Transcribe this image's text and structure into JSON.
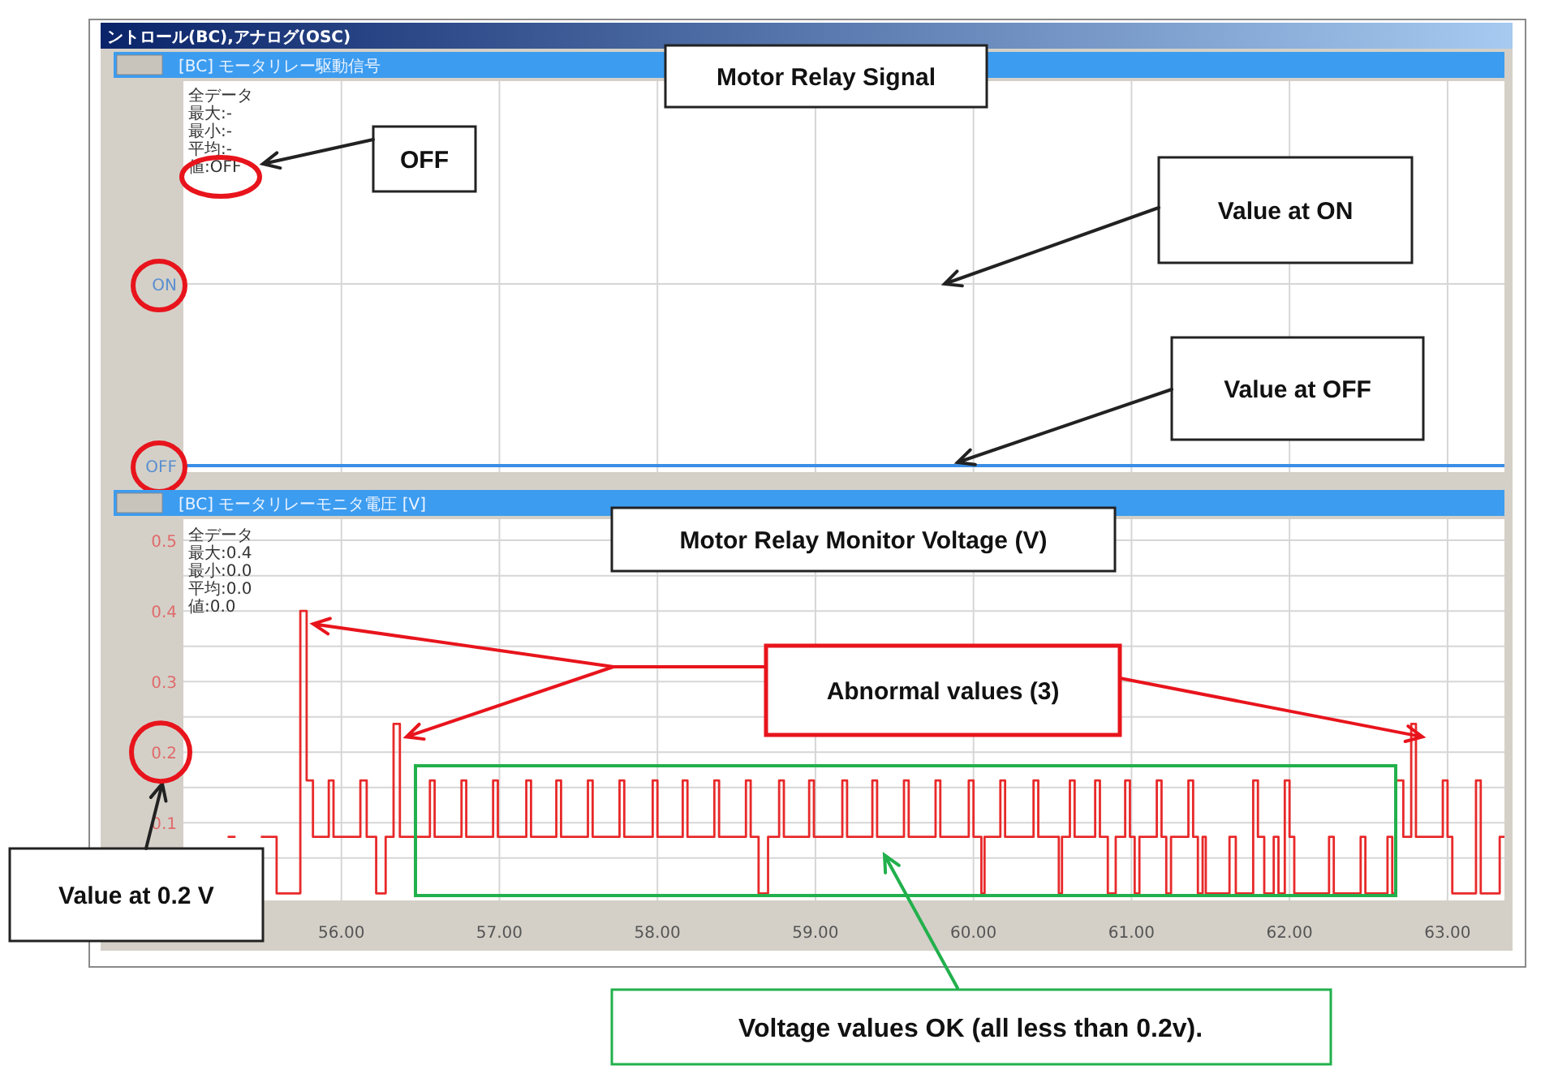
{
  "chart_data": [
    {
      "type": "other",
      "title": "Motor Relay Signal",
      "subtitle": "[BC] モータリレー駆動信号",
      "annotations": [
        "ントロール(BC),アナログ(OSC)",
        "全データ",
        "最大:-",
        "最小:-",
        "平均:-",
        "値:OFF",
        "OFF",
        "Value at ON",
        "Value at OFF",
        "ON",
        "OFF"
      ]
    },
    {
      "type": "step",
      "title": "Motor Relay Monitor Voltage (V)",
      "subtitle": "[BC] モータリレーモニタ電圧 [V]",
      "annotations": [
        "全データ",
        "最大:0.4",
        "最小:0.0",
        "平均:0.0",
        "値:0.0",
        "Abnormal values (3)",
        "Value at 0.2 V",
        "Voltage values OK (all less than 0.2v)."
      ],
      "series": [
        {
          "color": "#e8292a",
          "x": [
            55.28,
            55.33,
            55.49,
            55.59,
            55.74,
            55.78,
            55.82,
            55.92,
            55.95,
            56.12,
            56.16,
            56.22,
            56.28,
            56.33,
            56.37,
            56.56,
            56.59,
            56.76,
            56.79,
            56.96,
            56.99,
            57.17,
            57.2,
            57.36,
            57.39,
            57.56,
            57.59,
            57.76,
            57.79,
            57.97,
            58.0,
            58.16,
            58.19,
            58.36,
            58.39,
            58.56,
            58.59,
            58.64,
            58.7,
            58.77,
            58.8,
            58.96,
            58.99,
            59.17,
            59.2,
            59.36,
            59.39,
            59.56,
            59.59,
            59.76,
            59.79,
            59.97,
            60.0,
            60.05,
            60.07,
            60.17,
            60.2,
            60.38,
            60.41,
            60.54,
            60.56,
            60.61,
            60.64,
            60.77,
            60.8,
            60.85,
            60.9,
            60.96,
            60.99,
            61.02,
            61.05,
            61.16,
            61.19,
            61.22,
            61.25,
            61.36,
            61.39,
            61.42,
            61.45,
            61.47,
            61.62,
            61.66,
            61.77,
            61.8,
            61.84,
            61.9,
            61.93,
            61.97,
            62.0,
            62.03,
            62.25,
            62.28,
            62.45,
            62.48,
            62.62,
            62.65,
            62.67,
            62.72,
            62.77,
            62.8,
            62.97,
            63.0,
            63.03,
            63.18,
            63.21,
            63.33,
            63.36
          ],
          "values": [
            0.08,
            null,
            0.08,
            0,
            0.4,
            0.16,
            0.08,
            0.16,
            0.08,
            0.16,
            0.08,
            0,
            0.08,
            0.24,
            0.08,
            0.16,
            0.08,
            0.16,
            0.08,
            0.16,
            0.08,
            0.16,
            0.08,
            0.16,
            0.08,
            0.16,
            0.08,
            0.16,
            0.08,
            0.16,
            0.08,
            0.16,
            0.08,
            0.16,
            0.08,
            0.16,
            0.08,
            0,
            0.08,
            0.16,
            0.08,
            0.16,
            0.08,
            0.16,
            0.08,
            0.16,
            0.08,
            0.16,
            0.08,
            0.16,
            0.08,
            0.16,
            0.08,
            0,
            0.08,
            0.16,
            0.08,
            0.16,
            0.08,
            0,
            0.08,
            0.16,
            0.08,
            0.16,
            0.08,
            0,
            0.08,
            0.16,
            0.08,
            0,
            0.08,
            0.16,
            0.08,
            0,
            0.08,
            0.16,
            0.08,
            0,
            0.08,
            0,
            0.08,
            0,
            0.16,
            0.08,
            0,
            0.08,
            0,
            0.16,
            0.08,
            0,
            0.08,
            0,
            0.08,
            0,
            0.08,
            0,
            0.16,
            0.08,
            0.24,
            0.08,
            0.16,
            0.08,
            0,
            0.16,
            0,
            0.08,
            0.08
          ]
        }
      ],
      "xlim": [
        55.0,
        63.36
      ],
      "ylim": [
        -0.01,
        0.53
      ],
      "xticks": [
        {
          "value": 56,
          "label": "56.00"
        },
        {
          "value": 57,
          "label": "57.00"
        },
        {
          "value": 58,
          "label": "58.00"
        },
        {
          "value": 59,
          "label": "59.00"
        },
        {
          "value": 60,
          "label": "60.00"
        },
        {
          "value": 61,
          "label": "61.00"
        },
        {
          "value": 62,
          "label": "62.00"
        },
        {
          "value": 63,
          "label": "63.00"
        }
      ],
      "yticks": [
        {
          "value": 0.05,
          "label": null
        },
        0.1,
        {
          "value": 0.15,
          "label": null
        },
        0.2,
        {
          "value": 0.25,
          "label": null
        },
        0.3,
        {
          "value": 0.35,
          "label": null
        },
        0.4,
        {
          "value": 0.45,
          "label": null
        },
        0.5
      ],
      "grid": true
    }
  ]
}
